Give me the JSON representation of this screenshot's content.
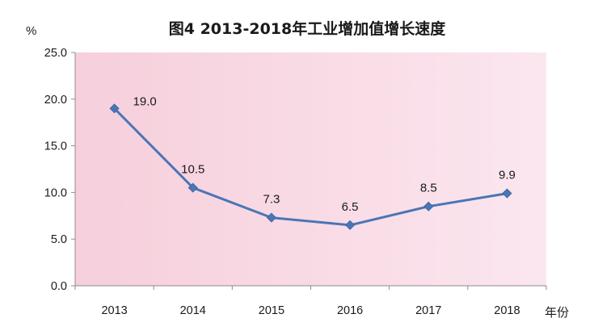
{
  "chart_data": {
    "type": "line",
    "title": "图4  2013-2018年工业增加值增长速度",
    "ylabel": "%",
    "xlabel": "年份",
    "categories": [
      "2013",
      "2014",
      "2015",
      "2016",
      "2017",
      "2018"
    ],
    "series": [
      {
        "name": "工业增加值增长速度",
        "values": [
          19.0,
          10.5,
          7.3,
          6.5,
          8.5,
          9.9
        ]
      }
    ],
    "data_labels": [
      "19.0",
      "10.5",
      "7.3",
      "6.5",
      "8.5",
      "9.9"
    ],
    "ylim": [
      0,
      25
    ],
    "yticks": [
      0,
      5,
      10,
      15,
      20,
      25
    ],
    "ytick_labels": [
      "0.0",
      "5.0",
      "10.0",
      "15.0",
      "20.0",
      "25.0"
    ],
    "grid": false,
    "colors": {
      "line": "#4a76b5",
      "marker": "#4a76b5",
      "plot_bg_left": "#f6cfdb",
      "plot_bg_right": "#fbe6ef",
      "axis": "#8c8c8c"
    }
  }
}
